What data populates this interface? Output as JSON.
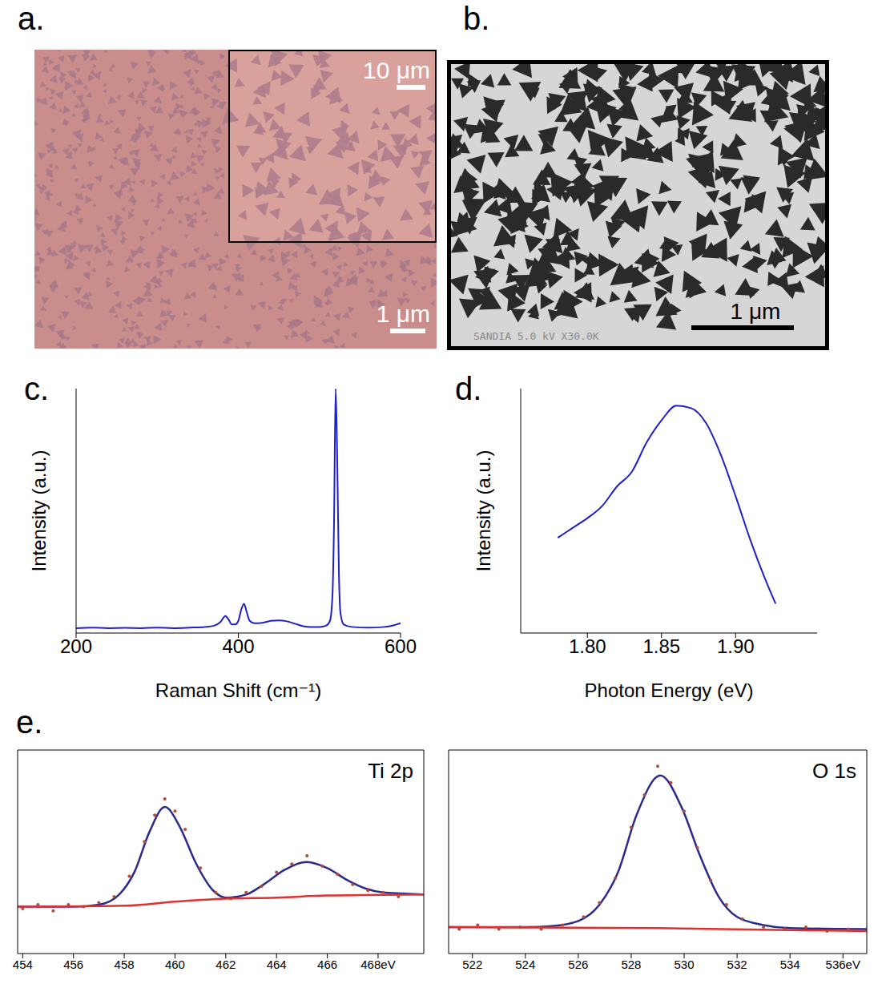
{
  "images": [
    {
      "label": "a.",
      "inset_scale_bar": "10 μm",
      "scale_bar": "1 μm"
    },
    {
      "label": "b.",
      "scale_bar": "1 μm",
      "caption": "SANDIA 5.0 kV X30.0K"
    }
  ],
  "chart_data": [
    {
      "label": "c.",
      "type": "line",
      "xlabel": "Raman Shift (cm⁻¹)",
      "ylabel": "Intensity (a.u.)",
      "color": "#2020c8",
      "x": [
        200,
        220,
        240,
        260,
        280,
        300,
        320,
        340,
        360,
        370,
        378,
        384,
        388,
        392,
        396,
        400,
        404,
        407,
        410,
        414,
        420,
        430,
        440,
        450,
        460,
        470,
        480,
        490,
        500,
        508,
        513,
        516,
        518,
        520,
        522,
        524,
        526,
        530,
        540,
        560,
        580,
        590,
        600
      ],
      "values": [
        0.02,
        0.022,
        0.02,
        0.021,
        0.02,
        0.022,
        0.02,
        0.022,
        0.025,
        0.03,
        0.045,
        0.07,
        0.055,
        0.035,
        0.035,
        0.05,
        0.1,
        0.12,
        0.09,
        0.05,
        0.04,
        0.042,
        0.05,
        0.052,
        0.048,
        0.038,
        0.028,
        0.025,
        0.025,
        0.03,
        0.05,
        0.15,
        0.45,
        1.0,
        0.7,
        0.25,
        0.08,
        0.035,
        0.025,
        0.022,
        0.025,
        0.03,
        0.04
      ],
      "xlim": [
        200,
        600
      ],
      "xticks": [
        200,
        400,
        600
      ],
      "ylim": [
        0,
        1
      ],
      "tick_labels": "x"
    },
    {
      "label": "d.",
      "type": "line",
      "xlabel": "Photon Energy (eV)",
      "ylabel": "Intensity (a.u.)",
      "color": "#2020c8",
      "x": [
        1.78,
        1.79,
        1.8,
        1.81,
        1.82,
        1.83,
        1.84,
        1.85,
        1.86,
        1.87,
        1.88,
        1.89,
        1.9,
        1.91,
        1.92,
        1.927
      ],
      "values": [
        0.39,
        0.43,
        0.47,
        0.52,
        0.6,
        0.66,
        0.78,
        0.87,
        0.93,
        0.92,
        0.86,
        0.73,
        0.56,
        0.38,
        0.22,
        0.12
      ],
      "xlim": [
        1.755,
        1.955
      ],
      "xticks": [
        {
          "value": 1.8,
          "label": "1.80"
        },
        1.85,
        {
          "value": 1.9,
          "label": "1.90"
        }
      ],
      "ylim": [
        0,
        1
      ],
      "tick_labels": "x"
    },
    {
      "label": "e.",
      "type": "line",
      "title": "Ti 2p",
      "xlim": [
        453.8,
        469.8
      ],
      "xticks": [
        454,
        456,
        458,
        460,
        462,
        464,
        466,
        {
          "value": 468,
          "label": "468eV"
        }
      ],
      "ylim": [
        0,
        1
      ],
      "tick_labels": "x",
      "series": [
        {
          "type": "scatter",
          "color": "#b5483a",
          "x": [
            454,
            454.6,
            455.2,
            455.8,
            456.4,
            457,
            457.6,
            458.2,
            458.8,
            459.2,
            459.6,
            460,
            460.4,
            461,
            461.6,
            462.2,
            462.8,
            463.4,
            464,
            464.6,
            465.2,
            465.8,
            466.4,
            467,
            467.6,
            468.2,
            468.8
          ],
          "values": [
            0.22,
            0.24,
            0.21,
            0.24,
            0.23,
            0.25,
            0.28,
            0.38,
            0.55,
            0.68,
            0.76,
            0.7,
            0.61,
            0.42,
            0.3,
            0.27,
            0.3,
            0.33,
            0.4,
            0.44,
            0.48,
            0.43,
            0.39,
            0.34,
            0.31,
            0.3,
            0.28
          ]
        },
        {
          "type": "line",
          "color": "#2b2b8c",
          "x": [
            453.8,
            455,
            456,
            457,
            457.8,
            458.4,
            459,
            459.6,
            460.2,
            460.8,
            461.5,
            462,
            462.8,
            463.5,
            464.3,
            465.2,
            466,
            466.8,
            467.5,
            468.2,
            469,
            469.8
          ],
          "values": [
            0.23,
            0.23,
            0.23,
            0.24,
            0.29,
            0.4,
            0.6,
            0.72,
            0.62,
            0.45,
            0.31,
            0.275,
            0.29,
            0.34,
            0.41,
            0.45,
            0.42,
            0.36,
            0.32,
            0.3,
            0.295,
            0.29
          ]
        },
        {
          "type": "line",
          "color": "#e03030",
          "x": [
            453.8,
            458,
            460,
            462,
            464,
            466,
            469.8
          ],
          "values": [
            0.23,
            0.235,
            0.255,
            0.27,
            0.275,
            0.285,
            0.29
          ]
        }
      ]
    },
    {
      "type": "line",
      "title": "O 1s",
      "xlim": [
        521.1,
        536.9
      ],
      "xticks": [
        522,
        524,
        526,
        528,
        530,
        532,
        534,
        {
          "value": 536,
          "label": "536eV"
        }
      ],
      "ylim": [
        0,
        1
      ],
      "tick_labels": "x",
      "series": [
        {
          "type": "scatter",
          "color": "#b5483a",
          "x": [
            521.5,
            522.2,
            523,
            523.8,
            524.6,
            525.4,
            526.2,
            526.8,
            527.4,
            528,
            528.5,
            529,
            529.5,
            530,
            530.5,
            531,
            531.6,
            532.2,
            533,
            533.8,
            534.6,
            535.4,
            536.2
          ],
          "values": [
            0.12,
            0.14,
            0.12,
            0.13,
            0.12,
            0.14,
            0.18,
            0.25,
            0.37,
            0.62,
            0.78,
            0.92,
            0.84,
            0.7,
            0.52,
            0.36,
            0.24,
            0.17,
            0.13,
            0.12,
            0.13,
            0.11,
            0.12
          ]
        },
        {
          "type": "line",
          "color": "#2b2b8c",
          "x": [
            521.1,
            524,
            525,
            526,
            526.8,
            527.5,
            528.2,
            529.1,
            529.9,
            530.6,
            531.3,
            532,
            533,
            534,
            536.9
          ],
          "values": [
            0.13,
            0.13,
            0.135,
            0.16,
            0.24,
            0.4,
            0.68,
            0.875,
            0.72,
            0.48,
            0.28,
            0.18,
            0.14,
            0.125,
            0.12
          ]
        },
        {
          "type": "line",
          "color": "#e03030",
          "x": [
            521.1,
            529,
            536.9
          ],
          "values": [
            0.13,
            0.125,
            0.11
          ]
        }
      ]
    }
  ]
}
